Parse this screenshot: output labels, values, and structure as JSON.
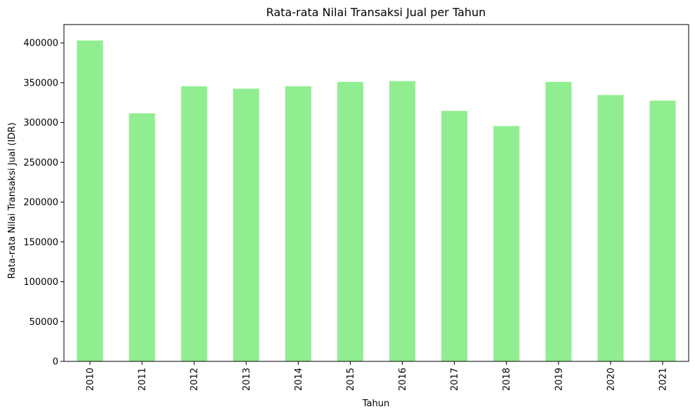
{
  "chart_data": {
    "type": "bar",
    "title": "Rata-rata Nilai Transaksi Jual per Tahun",
    "xlabel": "Tahun",
    "ylabel": "Rata-rata Nilai Transaksi Jual (IDR)",
    "categories": [
      "2010",
      "2011",
      "2012",
      "2013",
      "2014",
      "2015",
      "2016",
      "2017",
      "2018",
      "2019",
      "2020",
      "2021"
    ],
    "values": [
      403000,
      311500,
      345500,
      342500,
      345500,
      351000,
      352000,
      314500,
      295500,
      351000,
      334500,
      327500
    ],
    "ylim": [
      0,
      423000
    ],
    "yticks": [
      0,
      50000,
      100000,
      150000,
      200000,
      250000,
      300000,
      350000,
      400000
    ],
    "bar_color": "#90ee90",
    "grid": false,
    "legend": "none"
  }
}
